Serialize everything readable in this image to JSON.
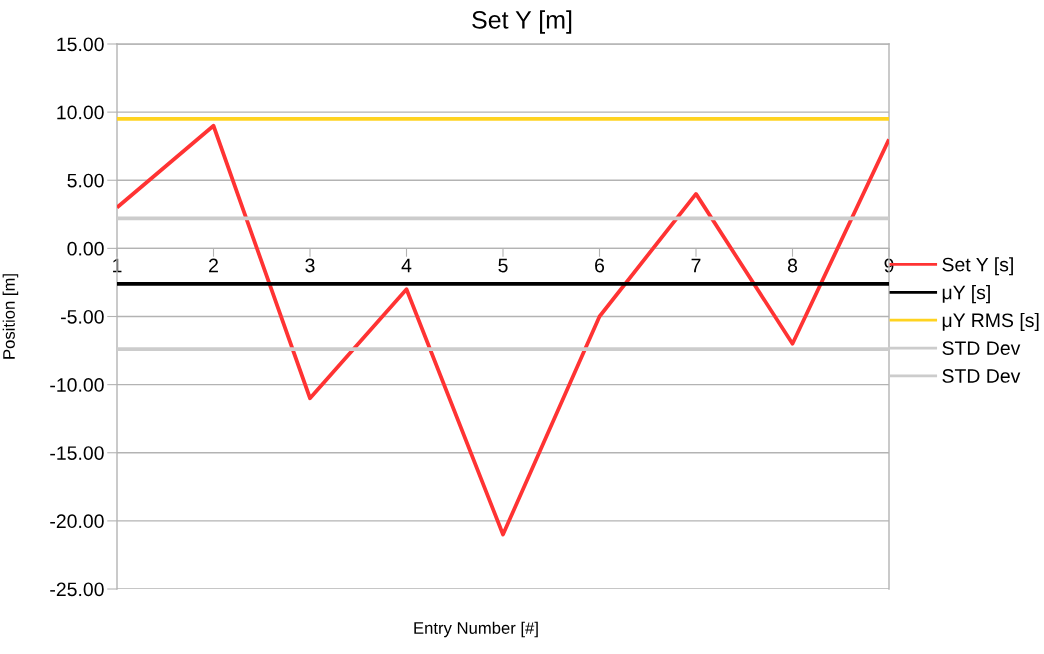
{
  "chart_data": {
    "type": "line",
    "title": "Set Y [m]",
    "xlabel": "Entry Number [#]",
    "ylabel": "Position [m]",
    "categories": [
      "1",
      "2",
      "3",
      "4",
      "5",
      "6",
      "7",
      "8",
      "9"
    ],
    "series": [
      {
        "name": "Set Y [s]",
        "color": "#ff3333",
        "values": [
          3,
          9,
          -11,
          -3,
          -21,
          -5,
          4,
          -7,
          8
        ]
      },
      {
        "name": "μY [s]",
        "color": "#000000",
        "values": [
          -2.6,
          -2.6,
          -2.6,
          -2.6,
          -2.6,
          -2.6,
          -2.6,
          -2.6,
          -2.6
        ]
      },
      {
        "name": "μY RMS [s]",
        "color": "#ffd320",
        "values": [
          9.5,
          9.5,
          9.5,
          9.5,
          9.5,
          9.5,
          9.5,
          9.5,
          9.5
        ]
      },
      {
        "name": "STD Dev",
        "color": "#cccccc",
        "values": [
          2.2,
          2.2,
          2.2,
          2.2,
          2.2,
          2.2,
          2.2,
          2.2,
          2.2
        ]
      },
      {
        "name": "STD Dev",
        "color": "#cccccc",
        "values": [
          -7.4,
          -7.4,
          -7.4,
          -7.4,
          -7.4,
          -7.4,
          -7.4,
          -7.4,
          -7.4
        ]
      }
    ],
    "ylim": [
      -25,
      15
    ],
    "yticks": [
      {
        "value": -25,
        "label": "-25.00"
      },
      {
        "value": -20,
        "label": "-20.00"
      },
      {
        "value": -15,
        "label": "-15.00"
      },
      {
        "value": -10,
        "label": "-10.00"
      },
      {
        "value": -5,
        "label": "-5.00"
      },
      {
        "value": 0,
        "label": "0.00"
      },
      {
        "value": 5,
        "label": "5.00"
      },
      {
        "value": 10,
        "label": "10.00"
      },
      {
        "value": 15,
        "label": "15.00"
      }
    ],
    "grid": "y",
    "legend": "right",
    "marker": "none",
    "line_style": "solid"
  }
}
